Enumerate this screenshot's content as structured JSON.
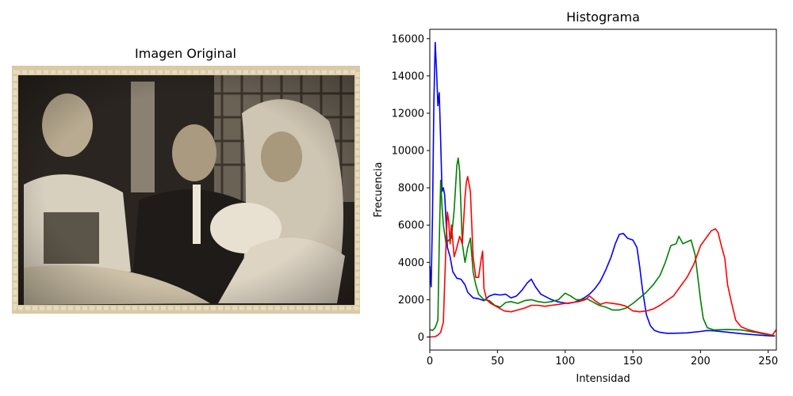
{
  "image_panel": {
    "title": "Imagen Original",
    "description_icon": "sepia-baptism-photo"
  },
  "chart_data": {
    "type": "line",
    "title": "Histograma",
    "xlabel": "Intensidad",
    "ylabel": "Frecuencia",
    "xlim": [
      0,
      256
    ],
    "ylim": [
      -700,
      16500
    ],
    "xticks": [
      0,
      50,
      100,
      150,
      200,
      250
    ],
    "yticks": [
      0,
      2000,
      4000,
      6000,
      8000,
      10000,
      12000,
      14000,
      16000
    ],
    "grid": false,
    "legend": "none",
    "series": [
      {
        "color": "#0000ff",
        "points": [
          [
            0,
            3800
          ],
          [
            1,
            2700
          ],
          [
            2,
            6500
          ],
          [
            3,
            12500
          ],
          [
            4,
            15800
          ],
          [
            5,
            14300
          ],
          [
            6,
            12400
          ],
          [
            7,
            13100
          ],
          [
            8,
            10500
          ],
          [
            9,
            7800
          ],
          [
            10,
            8000
          ],
          [
            11,
            7600
          ],
          [
            12,
            6200
          ],
          [
            13,
            4800
          ],
          [
            15,
            4300
          ],
          [
            17,
            3500
          ],
          [
            20,
            3150
          ],
          [
            23,
            3100
          ],
          [
            26,
            2800
          ],
          [
            28,
            2400
          ],
          [
            32,
            2100
          ],
          [
            36,
            2050
          ],
          [
            40,
            1950
          ],
          [
            44,
            2200
          ],
          [
            48,
            2300
          ],
          [
            52,
            2250
          ],
          [
            56,
            2300
          ],
          [
            60,
            2100
          ],
          [
            64,
            2200
          ],
          [
            68,
            2500
          ],
          [
            72,
            2900
          ],
          [
            75,
            3100
          ],
          [
            78,
            2700
          ],
          [
            82,
            2300
          ],
          [
            86,
            2150
          ],
          [
            90,
            2000
          ],
          [
            94,
            1900
          ],
          [
            98,
            1850
          ],
          [
            102,
            1800
          ],
          [
            106,
            1850
          ],
          [
            110,
            1950
          ],
          [
            114,
            2100
          ],
          [
            118,
            2300
          ],
          [
            122,
            2600
          ],
          [
            126,
            3000
          ],
          [
            130,
            3600
          ],
          [
            134,
            4300
          ],
          [
            137,
            5000
          ],
          [
            140,
            5500
          ],
          [
            143,
            5550
          ],
          [
            146,
            5300
          ],
          [
            150,
            5200
          ],
          [
            153,
            4800
          ],
          [
            155,
            3800
          ],
          [
            157,
            2600
          ],
          [
            160,
            1200
          ],
          [
            163,
            600
          ],
          [
            166,
            350
          ],
          [
            170,
            250
          ],
          [
            175,
            200
          ],
          [
            180,
            200
          ],
          [
            190,
            220
          ],
          [
            200,
            300
          ],
          [
            205,
            350
          ],
          [
            210,
            330
          ],
          [
            220,
            260
          ],
          [
            230,
            180
          ],
          [
            240,
            120
          ],
          [
            250,
            70
          ],
          [
            255,
            50
          ]
        ]
      },
      {
        "color": "#008000",
        "points": [
          [
            0,
            400
          ],
          [
            2,
            350
          ],
          [
            4,
            500
          ],
          [
            6,
            900
          ],
          [
            7,
            5000
          ],
          [
            8,
            8400
          ],
          [
            9,
            7000
          ],
          [
            10,
            6000
          ],
          [
            12,
            5000
          ],
          [
            14,
            5200
          ],
          [
            16,
            5300
          ],
          [
            18,
            6800
          ],
          [
            20,
            9200
          ],
          [
            21,
            9600
          ],
          [
            22,
            8900
          ],
          [
            24,
            5000
          ],
          [
            26,
            4000
          ],
          [
            28,
            4800
          ],
          [
            30,
            5300
          ],
          [
            32,
            3500
          ],
          [
            34,
            2800
          ],
          [
            36,
            2300
          ],
          [
            40,
            2000
          ],
          [
            44,
            1950
          ],
          [
            48,
            1700
          ],
          [
            52,
            1600
          ],
          [
            56,
            1850
          ],
          [
            60,
            1900
          ],
          [
            65,
            1800
          ],
          [
            70,
            1950
          ],
          [
            75,
            2000
          ],
          [
            80,
            1900
          ],
          [
            85,
            1850
          ],
          [
            90,
            1900
          ],
          [
            95,
            2000
          ],
          [
            100,
            2350
          ],
          [
            104,
            2200
          ],
          [
            108,
            2000
          ],
          [
            112,
            2000
          ],
          [
            116,
            2050
          ],
          [
            120,
            1900
          ],
          [
            125,
            1700
          ],
          [
            130,
            1600
          ],
          [
            135,
            1450
          ],
          [
            140,
            1450
          ],
          [
            145,
            1550
          ],
          [
            150,
            1800
          ],
          [
            155,
            2100
          ],
          [
            160,
            2400
          ],
          [
            165,
            2800
          ],
          [
            170,
            3300
          ],
          [
            174,
            4000
          ],
          [
            178,
            4900
          ],
          [
            182,
            5000
          ],
          [
            184,
            5400
          ],
          [
            187,
            5000
          ],
          [
            190,
            5100
          ],
          [
            193,
            5200
          ],
          [
            196,
            4400
          ],
          [
            198,
            3200
          ],
          [
            200,
            2000
          ],
          [
            202,
            1000
          ],
          [
            205,
            500
          ],
          [
            210,
            380
          ],
          [
            220,
            400
          ],
          [
            230,
            380
          ],
          [
            240,
            260
          ],
          [
            250,
            120
          ],
          [
            255,
            60
          ]
        ]
      },
      {
        "color": "#ff0000",
        "points": [
          [
            0,
            0
          ],
          [
            4,
            20
          ],
          [
            6,
            100
          ],
          [
            8,
            250
          ],
          [
            10,
            800
          ],
          [
            11,
            3000
          ],
          [
            12,
            5000
          ],
          [
            13,
            6700
          ],
          [
            14,
            6200
          ],
          [
            15,
            5000
          ],
          [
            16,
            6000
          ],
          [
            18,
            4300
          ],
          [
            20,
            4800
          ],
          [
            22,
            5400
          ],
          [
            24,
            5000
          ],
          [
            26,
            7500
          ],
          [
            27,
            8300
          ],
          [
            28,
            8600
          ],
          [
            30,
            7800
          ],
          [
            32,
            4300
          ],
          [
            34,
            3200
          ],
          [
            36,
            3200
          ],
          [
            38,
            4200
          ],
          [
            39,
            4600
          ],
          [
            40,
            2600
          ],
          [
            42,
            2000
          ],
          [
            45,
            1800
          ],
          [
            50,
            1600
          ],
          [
            55,
            1400
          ],
          [
            60,
            1350
          ],
          [
            65,
            1450
          ],
          [
            70,
            1550
          ],
          [
            75,
            1700
          ],
          [
            80,
            1700
          ],
          [
            85,
            1650
          ],
          [
            90,
            1700
          ],
          [
            95,
            1750
          ],
          [
            100,
            1800
          ],
          [
            105,
            1850
          ],
          [
            110,
            1900
          ],
          [
            115,
            2000
          ],
          [
            118,
            2200
          ],
          [
            122,
            1950
          ],
          [
            126,
            1750
          ],
          [
            130,
            1850
          ],
          [
            135,
            1800
          ],
          [
            140,
            1750
          ],
          [
            145,
            1650
          ],
          [
            150,
            1400
          ],
          [
            155,
            1350
          ],
          [
            160,
            1400
          ],
          [
            165,
            1500
          ],
          [
            170,
            1700
          ],
          [
            175,
            1950
          ],
          [
            180,
            2200
          ],
          [
            185,
            2700
          ],
          [
            190,
            3200
          ],
          [
            195,
            3900
          ],
          [
            200,
            4900
          ],
          [
            205,
            5400
          ],
          [
            208,
            5700
          ],
          [
            211,
            5800
          ],
          [
            213,
            5600
          ],
          [
            215,
            5000
          ],
          [
            218,
            4200
          ],
          [
            220,
            2800
          ],
          [
            223,
            1800
          ],
          [
            226,
            900
          ],
          [
            230,
            550
          ],
          [
            235,
            400
          ],
          [
            240,
            300
          ],
          [
            245,
            220
          ],
          [
            250,
            150
          ],
          [
            253,
            100
          ],
          [
            255,
            300
          ],
          [
            256,
            400
          ]
        ]
      }
    ]
  }
}
